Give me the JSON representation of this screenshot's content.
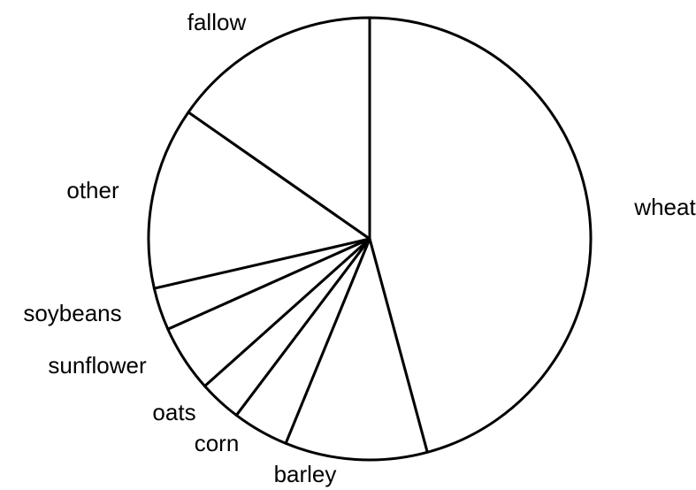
{
  "chart_data": {
    "type": "pie",
    "categories": [
      "wheat",
      "barley",
      "corn",
      "oats",
      "sunflower",
      "soybeans",
      "other",
      "fallow"
    ],
    "values": [
      45.8,
      10.4,
      4.1,
      3.1,
      4.9,
      3.1,
      13.3,
      15.3
    ],
    "color": "#ffffff"
  }
}
